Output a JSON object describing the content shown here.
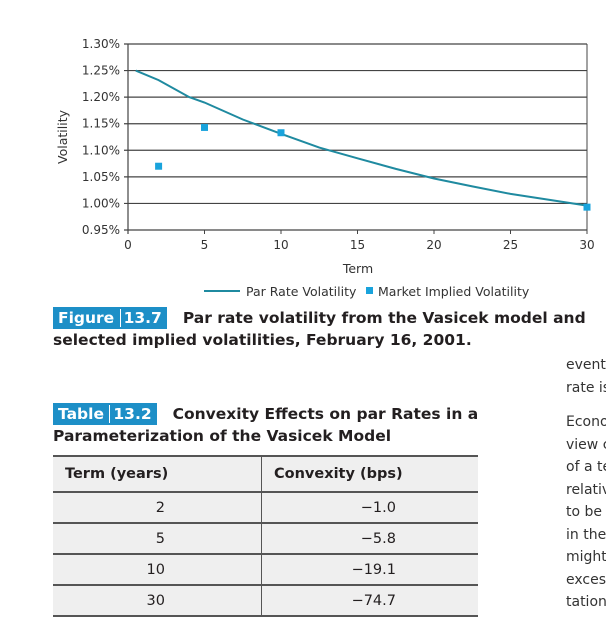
{
  "chart_data": {
    "type": "line",
    "xlabel": "Term",
    "ylabel": "Volatility",
    "xlim": [
      0,
      30
    ],
    "ylim": [
      0.95,
      1.3
    ],
    "x_ticks": [
      0,
      5,
      10,
      15,
      20,
      25,
      30
    ],
    "y_ticks": [
      "1.30%",
      "1.25%",
      "1.20%",
      "1.15%",
      "1.10%",
      "1.05%",
      "1.00%",
      "0.95%"
    ],
    "y_tick_values": [
      1.3,
      1.25,
      1.2,
      1.15,
      1.1,
      1.05,
      1.0,
      0.95
    ],
    "grid": true,
    "legend_position": "bottom",
    "series": [
      {
        "name": "Par Rate Volatility",
        "kind": "line",
        "color": "#1f8aa0",
        "x": [
          0.5,
          2,
          4,
          5,
          7.5,
          10,
          12.5,
          15,
          17.5,
          20,
          22.5,
          25,
          27.5,
          30
        ],
        "y": [
          1.25,
          1.232,
          1.2,
          1.19,
          1.158,
          1.131,
          1.105,
          1.085,
          1.065,
          1.047,
          1.032,
          1.018,
          1.007,
          0.996
        ]
      },
      {
        "name": "Market Implied Volatility",
        "kind": "scatter",
        "color": "#19a3dc",
        "x": [
          2,
          5,
          10,
          30
        ],
        "y": [
          1.07,
          1.143,
          1.133,
          0.993
        ]
      }
    ]
  },
  "figure": {
    "label": "Figure",
    "number": "13.7",
    "caption_line1": "Par rate volatility from the Vasicek model and",
    "caption_line2": "selected implied volatilities, February 16, 2001."
  },
  "table": {
    "label": "Table",
    "number": "13.2",
    "caption_line1": "Convexity Effects on par Rates in a",
    "caption_line2": "Parameterization of the Vasicek Model",
    "headers": [
      "Term (years)",
      "Convexity (bps)"
    ],
    "rows": [
      [
        "2",
        "−1.0"
      ],
      [
        "5",
        "−5.8"
      ],
      [
        "10",
        "−19.1"
      ],
      [
        "30",
        "−74.7"
      ]
    ]
  },
  "side_text": [
    "event",
    "rate is",
    "Econo",
    "view c",
    "of a te",
    "relativ",
    "to be",
    "in the",
    "might",
    "excess",
    "tation"
  ]
}
